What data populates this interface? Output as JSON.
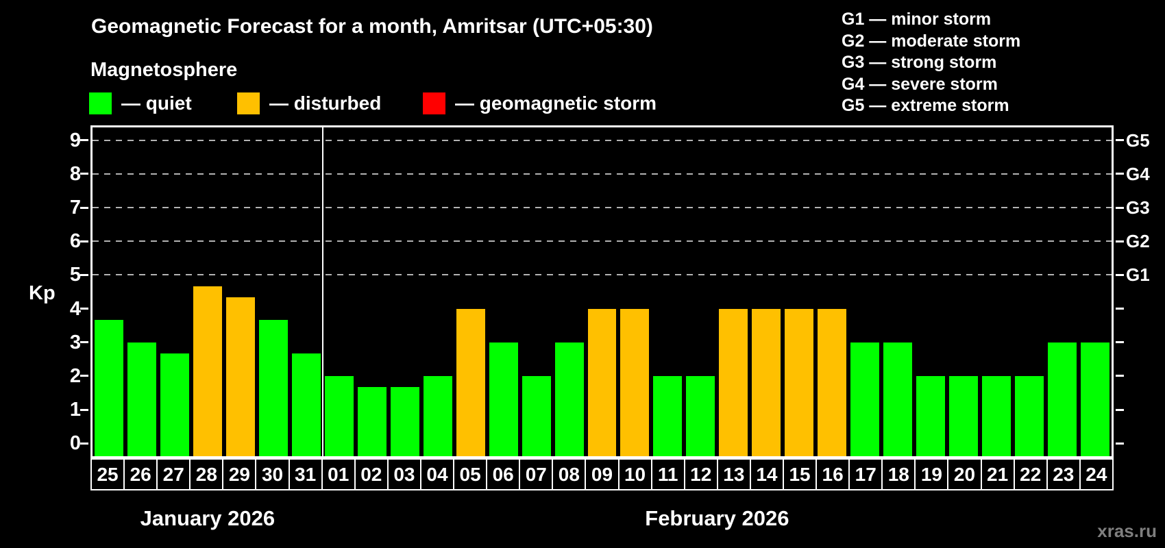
{
  "title": "Geomagnetic Forecast for a month, Amritsar (UTC+05:30)",
  "subtitle": "Magnetosphere",
  "legend": {
    "items": [
      {
        "key": "quiet",
        "label": "— quiet",
        "color": "#00ff00"
      },
      {
        "key": "disturbed",
        "label": "— disturbed",
        "color": "#ffc000"
      },
      {
        "key": "storm",
        "label": "— geomagnetic storm",
        "color": "#ff0000"
      }
    ]
  },
  "g_scale": [
    {
      "label": "G1 — minor storm"
    },
    {
      "label": "G2 — moderate storm"
    },
    {
      "label": "G3 — strong storm"
    },
    {
      "label": "G4 — severe storm"
    },
    {
      "label": "G5 — extreme storm"
    }
  ],
  "axis": {
    "kp_label": "Kp",
    "ticks": [
      "0",
      "1",
      "2",
      "3",
      "4",
      "5",
      "6",
      "7",
      "8",
      "9"
    ],
    "right_labels": [
      "G1",
      "G2",
      "G3",
      "G4",
      "G5"
    ]
  },
  "months": [
    {
      "label": "January 2026"
    },
    {
      "label": "February 2026"
    }
  ],
  "watermark": "xras.ru",
  "chart_data": {
    "type": "bar",
    "title": "Geomagnetic Forecast for a month, Amritsar (UTC+05:30)",
    "xlabel": "",
    "ylabel": "Kp",
    "ylim": [
      0,
      9
    ],
    "grid_levels": [
      5,
      6,
      7,
      8,
      9
    ],
    "grid_on": true,
    "bars": [
      {
        "month": "January 2026",
        "day": "25",
        "kp": 3.67,
        "status": "quiet"
      },
      {
        "month": "January 2026",
        "day": "26",
        "kp": 3.0,
        "status": "quiet"
      },
      {
        "month": "January 2026",
        "day": "27",
        "kp": 2.67,
        "status": "quiet"
      },
      {
        "month": "January 2026",
        "day": "28",
        "kp": 4.67,
        "status": "disturbed"
      },
      {
        "month": "January 2026",
        "day": "29",
        "kp": 4.33,
        "status": "disturbed"
      },
      {
        "month": "January 2026",
        "day": "30",
        "kp": 3.67,
        "status": "quiet"
      },
      {
        "month": "January 2026",
        "day": "31",
        "kp": 2.67,
        "status": "quiet"
      },
      {
        "month": "February 2026",
        "day": "01",
        "kp": 2.0,
        "status": "quiet"
      },
      {
        "month": "February 2026",
        "day": "02",
        "kp": 1.67,
        "status": "quiet"
      },
      {
        "month": "February 2026",
        "day": "03",
        "kp": 1.67,
        "status": "quiet"
      },
      {
        "month": "February 2026",
        "day": "04",
        "kp": 2.0,
        "status": "quiet"
      },
      {
        "month": "February 2026",
        "day": "05",
        "kp": 4.0,
        "status": "disturbed"
      },
      {
        "month": "February 2026",
        "day": "06",
        "kp": 3.0,
        "status": "quiet"
      },
      {
        "month": "February 2026",
        "day": "07",
        "kp": 2.0,
        "status": "quiet"
      },
      {
        "month": "February 2026",
        "day": "08",
        "kp": 3.0,
        "status": "quiet"
      },
      {
        "month": "February 2026",
        "day": "09",
        "kp": 4.0,
        "status": "disturbed"
      },
      {
        "month": "February 2026",
        "day": "10",
        "kp": 4.0,
        "status": "disturbed"
      },
      {
        "month": "February 2026",
        "day": "11",
        "kp": 2.0,
        "status": "quiet"
      },
      {
        "month": "February 2026",
        "day": "12",
        "kp": 2.0,
        "status": "quiet"
      },
      {
        "month": "February 2026",
        "day": "13",
        "kp": 4.0,
        "status": "disturbed"
      },
      {
        "month": "February 2026",
        "day": "14",
        "kp": 4.0,
        "status": "disturbed"
      },
      {
        "month": "February 2026",
        "day": "15",
        "kp": 4.0,
        "status": "disturbed"
      },
      {
        "month": "February 2026",
        "day": "16",
        "kp": 4.0,
        "status": "disturbed"
      },
      {
        "month": "February 2026",
        "day": "17",
        "kp": 3.0,
        "status": "quiet"
      },
      {
        "month": "February 2026",
        "day": "18",
        "kp": 3.0,
        "status": "quiet"
      },
      {
        "month": "February 2026",
        "day": "19",
        "kp": 2.0,
        "status": "quiet"
      },
      {
        "month": "February 2026",
        "day": "20",
        "kp": 2.0,
        "status": "quiet"
      },
      {
        "month": "February 2026",
        "day": "21",
        "kp": 2.0,
        "status": "quiet"
      },
      {
        "month": "February 2026",
        "day": "22",
        "kp": 2.0,
        "status": "quiet"
      },
      {
        "month": "February 2026",
        "day": "23",
        "kp": 3.0,
        "status": "quiet"
      },
      {
        "month": "February 2026",
        "day": "24",
        "kp": 3.0,
        "status": "quiet"
      }
    ]
  }
}
